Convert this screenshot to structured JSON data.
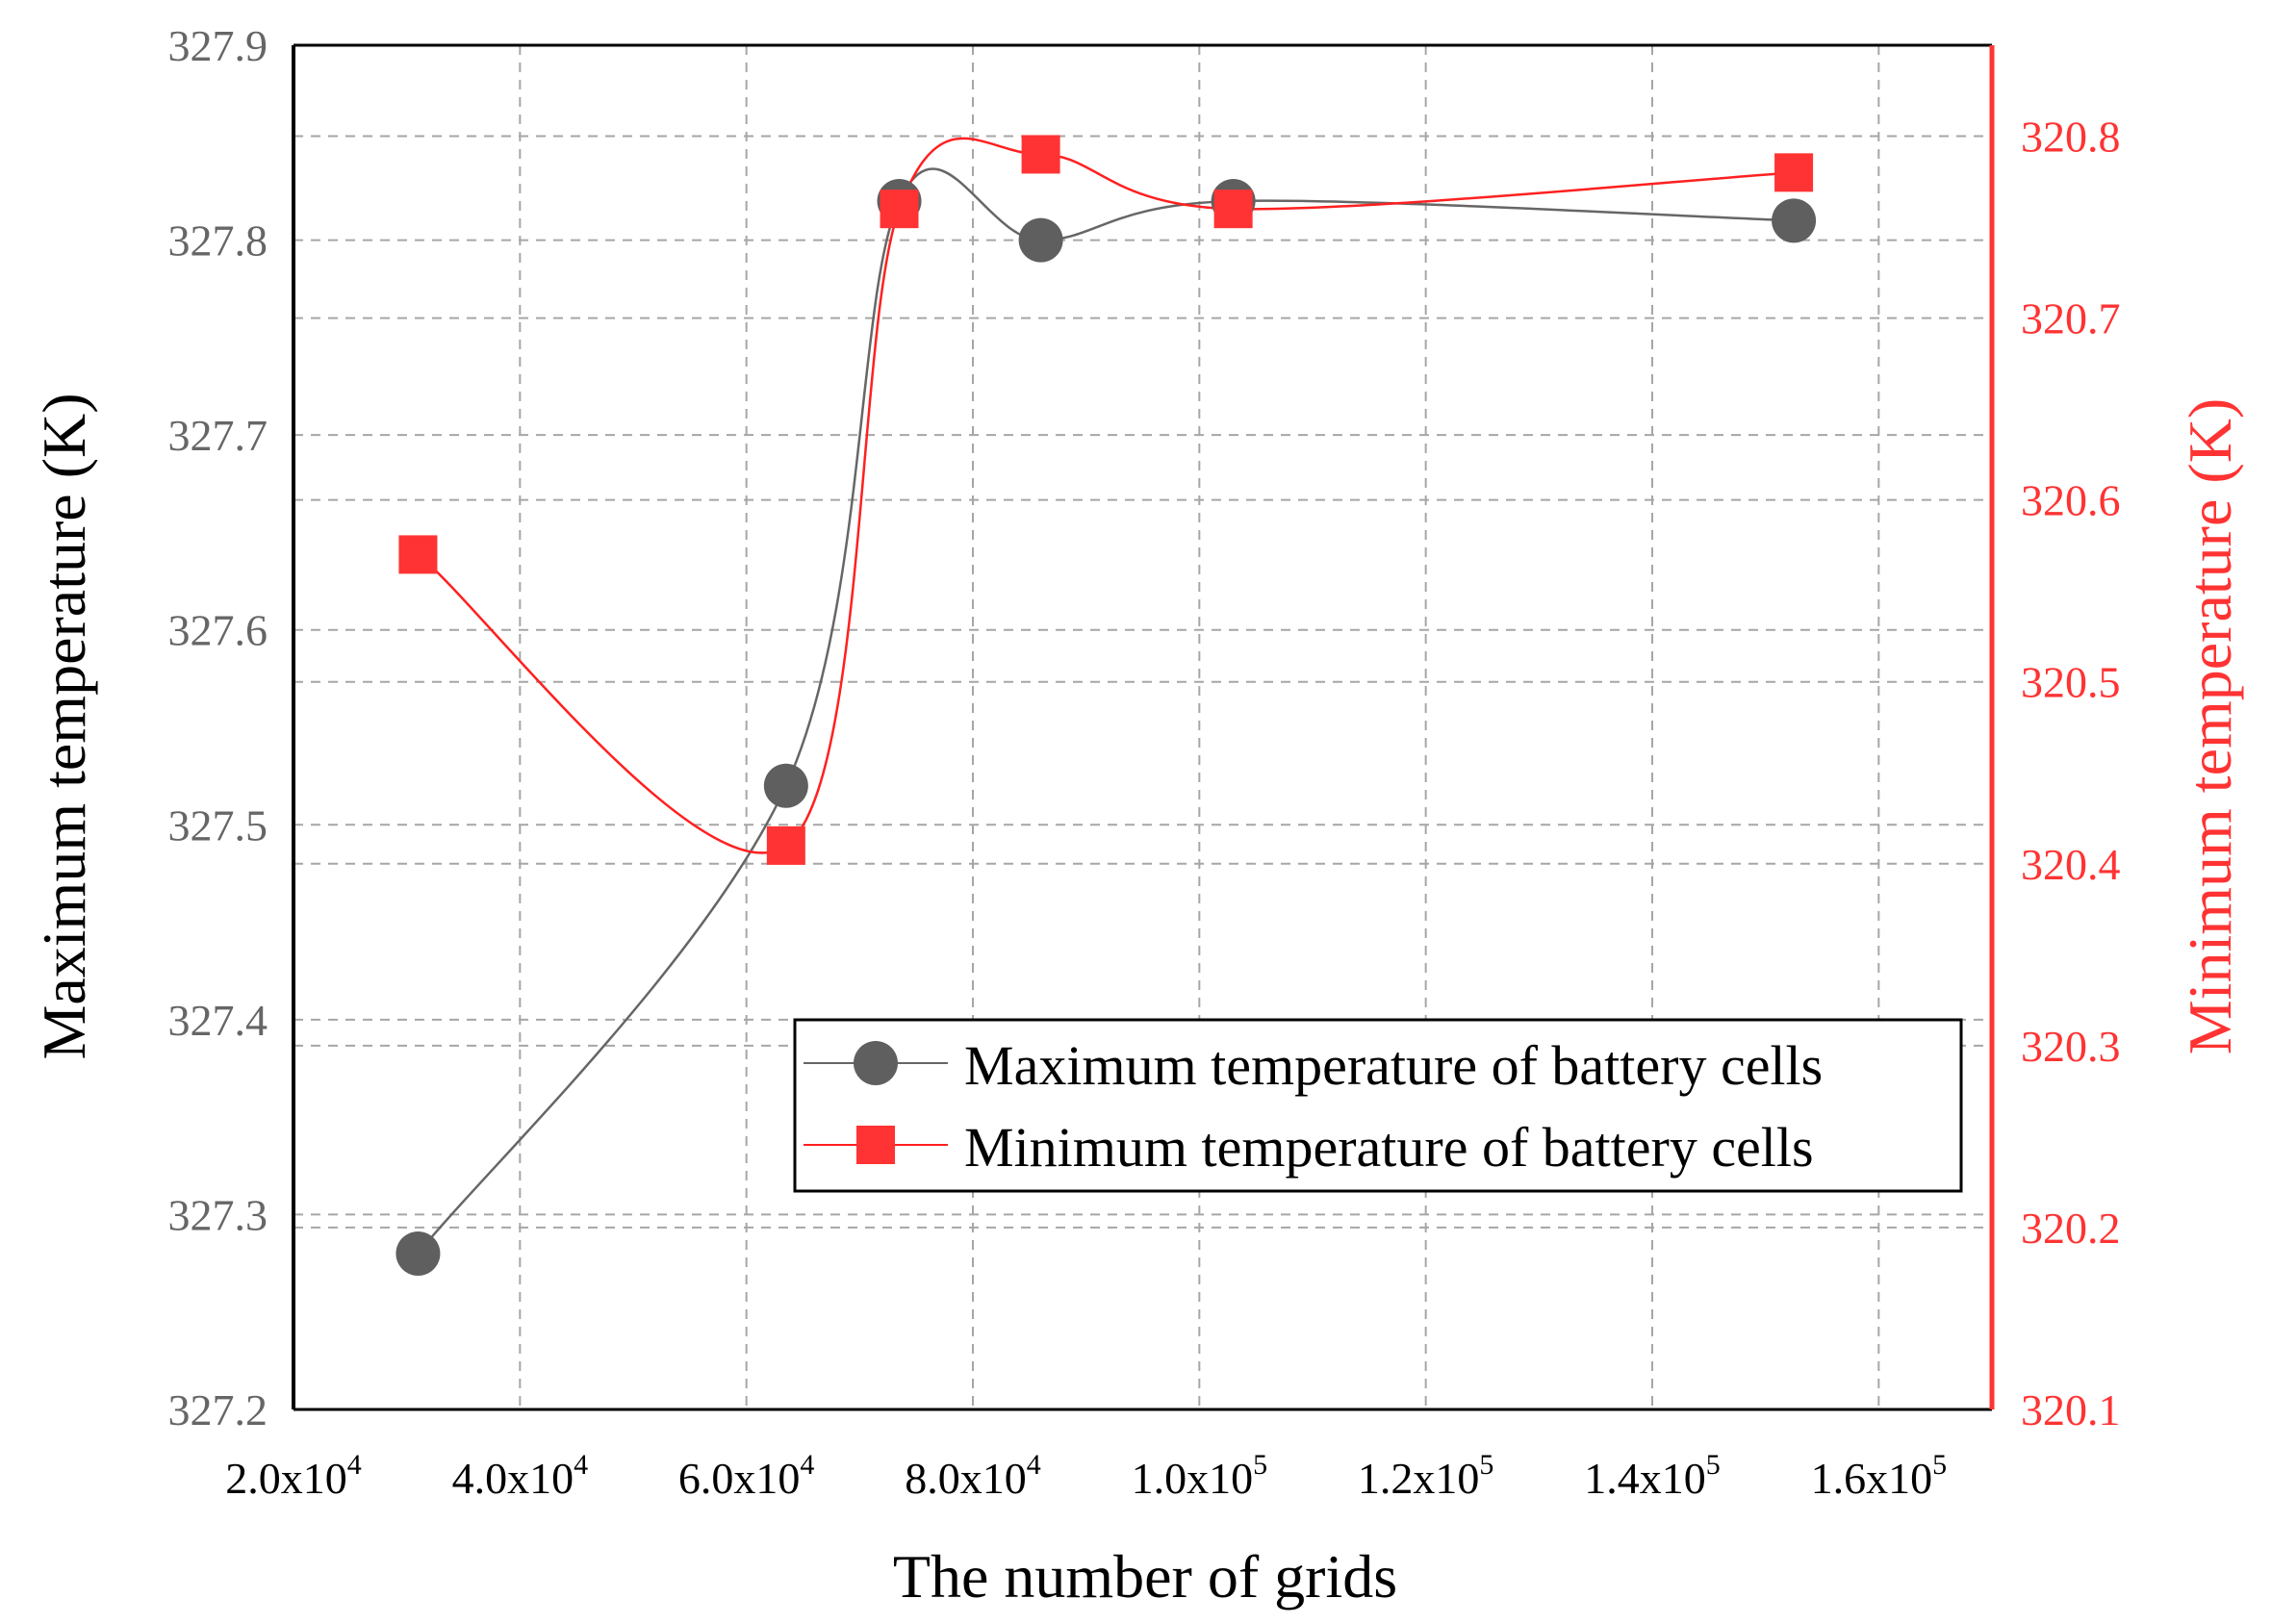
{
  "chart_data": {
    "type": "line",
    "xlabel": "The number of grids",
    "x_ticks": [
      {
        "value": 20000,
        "mantissa": "2.0x10",
        "exp": "4"
      },
      {
        "value": 40000,
        "mantissa": "4.0x10",
        "exp": "4"
      },
      {
        "value": 60000,
        "mantissa": "6.0x10",
        "exp": "4"
      },
      {
        "value": 80000,
        "mantissa": "8.0x10",
        "exp": "4"
      },
      {
        "value": 100000,
        "mantissa": "1.0x10",
        "exp": "5"
      },
      {
        "value": 120000,
        "mantissa": "1.2x10",
        "exp": "5"
      },
      {
        "value": 140000,
        "mantissa": "1.4x10",
        "exp": "5"
      },
      {
        "value": 160000,
        "mantissa": "1.6x10",
        "exp": "5"
      }
    ],
    "xlim": [
      20000,
      170000
    ],
    "y_left": {
      "label": "Maximum temperature (K)",
      "lim": [
        327.2,
        327.9
      ],
      "ticks": [
        "327.2",
        "327.3",
        "327.4",
        "327.5",
        "327.6",
        "327.7",
        "327.8",
        "327.9"
      ],
      "color": "#000000"
    },
    "y_right": {
      "label": "Minimum temperature (K)",
      "lim": [
        320.1,
        320.85
      ],
      "ticks": [
        "320.1",
        "320.2",
        "320.3",
        "320.4",
        "320.5",
        "320.6",
        "320.7",
        "320.8"
      ],
      "color": "#ff3333"
    },
    "grid": true,
    "legend_position": "lower-right",
    "series": [
      {
        "name": "Maximum temperature of battery cells",
        "axis": "left",
        "marker": "circle",
        "color": "#555555",
        "line_color": "#666666",
        "x": [
          31000,
          63500,
          73500,
          86000,
          103000,
          152500
        ],
        "y": [
          327.28,
          327.52,
          327.82,
          327.8,
          327.82,
          327.81
        ]
      },
      {
        "name": "Minimum temperature of battery cells",
        "axis": "right",
        "marker": "square",
        "color": "#ff3333",
        "line_color": "#ff2020",
        "x": [
          31000,
          63500,
          73500,
          86000,
          103000,
          152500
        ],
        "y": [
          320.57,
          320.41,
          320.76,
          320.79,
          320.76,
          320.78
        ]
      }
    ]
  }
}
